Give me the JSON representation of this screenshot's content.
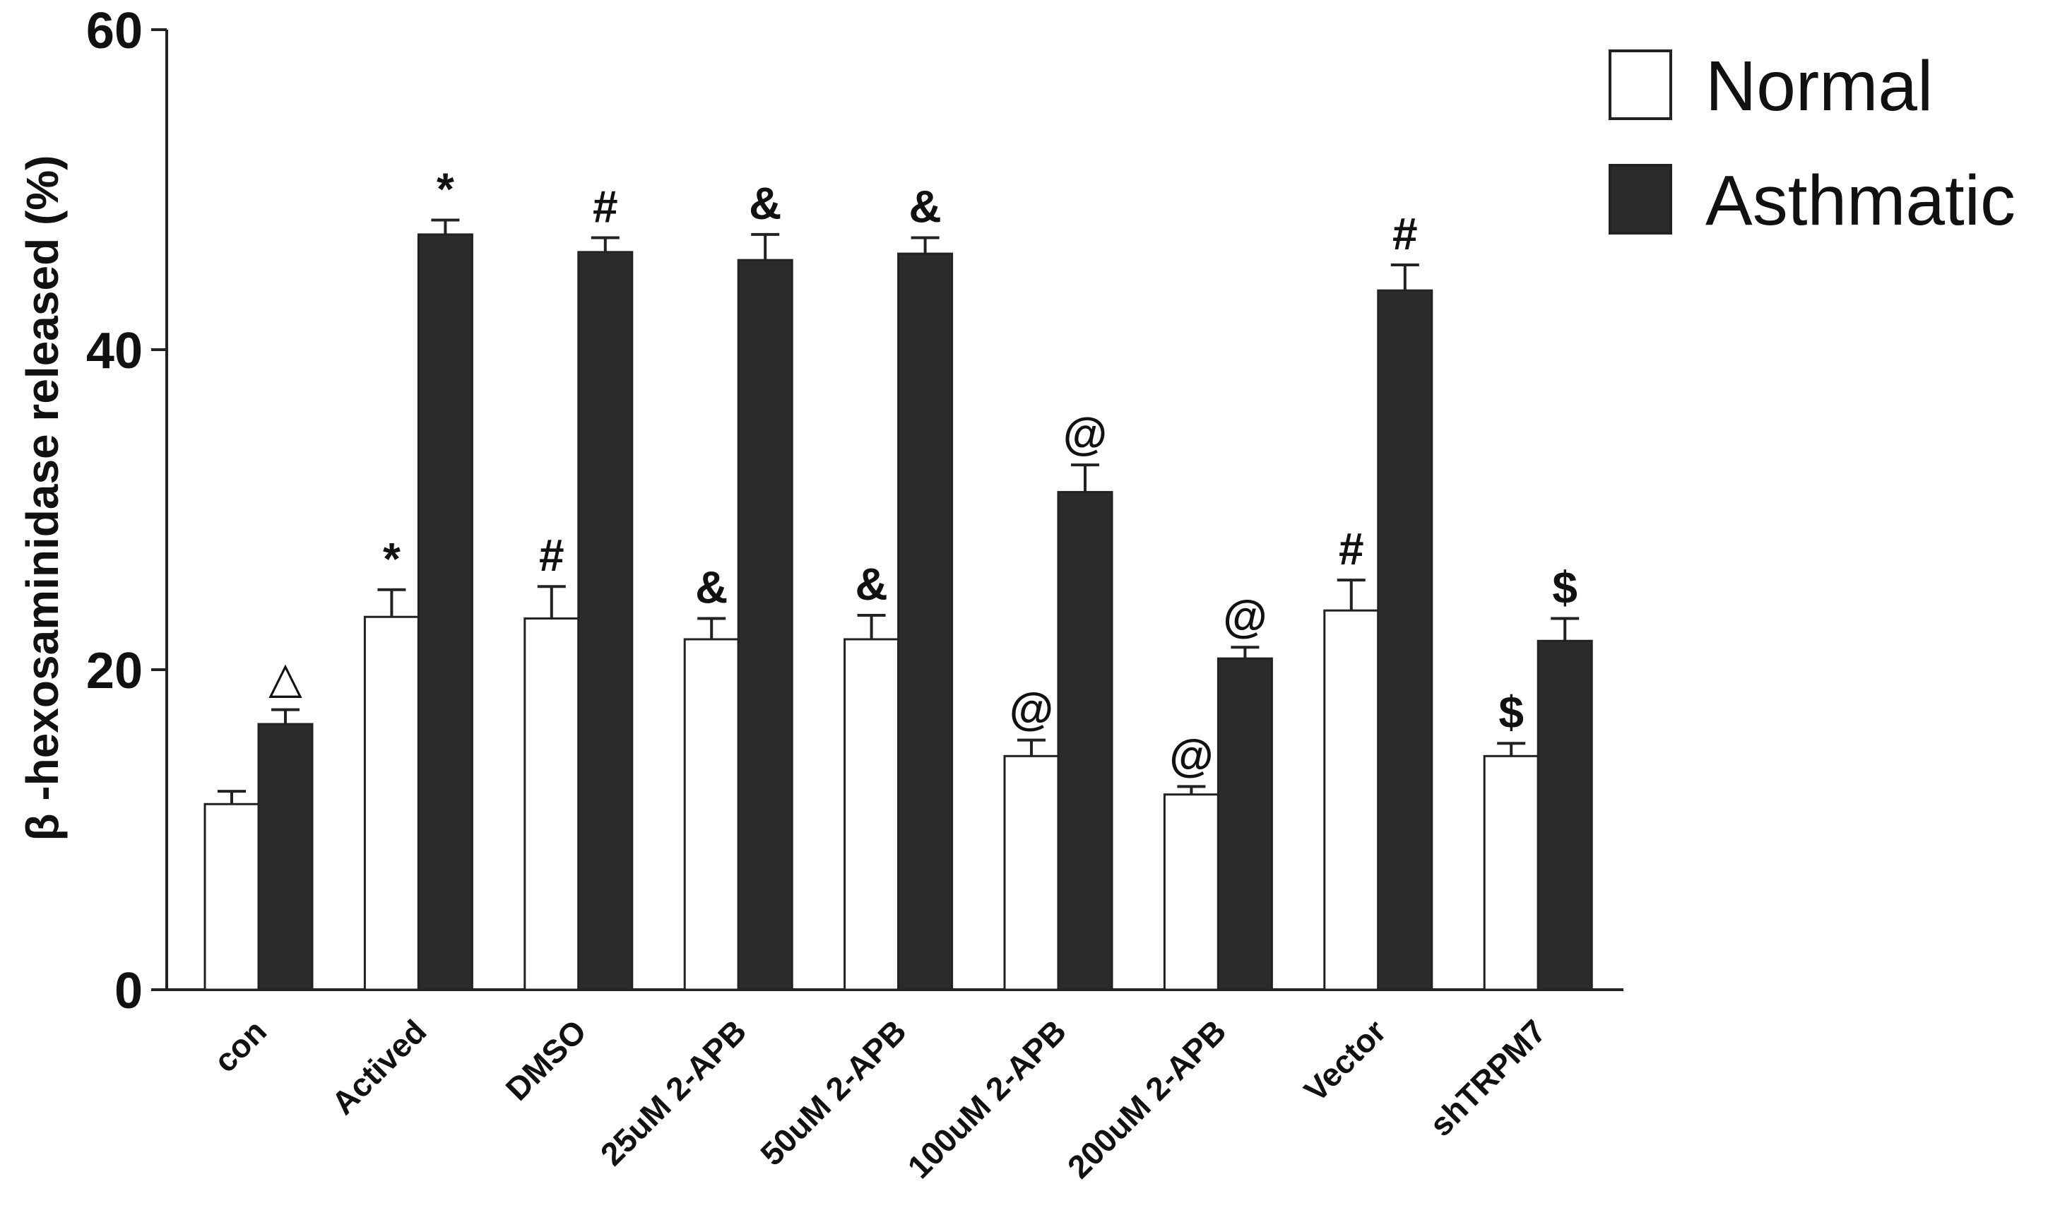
{
  "chart_data": {
    "type": "bar",
    "title": "",
    "xlabel": "",
    "ylabel": "β -hexosaminidase released (%)",
    "ylim": [
      0,
      60
    ],
    "yticks": [
      0,
      20,
      40,
      60
    ],
    "categories": [
      "con",
      "Actived",
      "DMSO",
      "25uM 2-APB",
      "50uM 2-APB",
      "100uM 2-APB",
      "200uM 2-APB",
      "Vector",
      "shTRPM7"
    ],
    "series": [
      {
        "name": "Normal",
        "color": "#ffffff",
        "values": [
          11.6,
          23.3,
          23.2,
          21.9,
          21.9,
          14.6,
          12.2,
          23.7,
          14.6
        ],
        "errors": [
          0.8,
          1.7,
          2.0,
          1.3,
          1.5,
          1.0,
          0.5,
          1.9,
          0.8
        ],
        "annotations": [
          "",
          "*",
          "#",
          "&",
          "&",
          "@",
          "@",
          "#",
          "$"
        ]
      },
      {
        "name": "Asthmatic",
        "color": "#2b2b2b",
        "values": [
          16.6,
          47.2,
          46.1,
          45.6,
          46.0,
          31.1,
          20.7,
          43.7,
          21.8
        ],
        "errors": [
          0.9,
          0.9,
          0.9,
          1.6,
          1.0,
          1.7,
          0.7,
          1.6,
          1.4
        ],
        "annotations": [
          "△",
          "*",
          "#",
          "&",
          "&",
          "@",
          "@",
          "#",
          "$"
        ]
      }
    ],
    "legend": {
      "position": "top-right"
    },
    "grid": false
  }
}
